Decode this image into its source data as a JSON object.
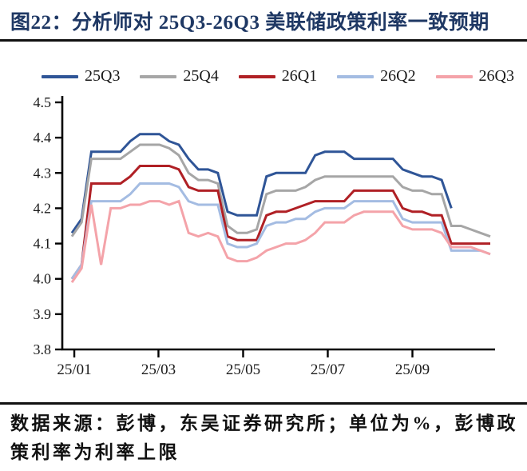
{
  "title": "图22：分析师对 25Q3-26Q3 美联储政策利率一致预期",
  "footer": "数据来源：彭博，东吴证券研究所；单位为%，彭博政策利率为利率上限",
  "colors": {
    "title_navy": "#1F3864",
    "rule_black": "#111111",
    "axis_black": "#000000"
  },
  "chart_data": {
    "type": "line",
    "title": "",
    "xlabel": "",
    "ylabel": "",
    "unit": "%",
    "grid": false,
    "legend_position": "top",
    "ylim": [
      3.8,
      4.5
    ],
    "y_ticks": [
      4.5,
      4.4,
      4.3,
      4.2,
      4.1,
      4.0,
      3.9,
      3.8
    ],
    "x_tick_labels": [
      "25/01",
      "25/03",
      "25/05",
      "25/07",
      "25/09"
    ],
    "x_ticks_at_point": [
      0.25,
      8.9,
      17.6,
      26.3,
      35.0
    ],
    "n_points": 44,
    "series": [
      {
        "name": "25Q3",
        "color": "#2F5597",
        "values": [
          4.13,
          4.17,
          4.36,
          4.36,
          4.36,
          4.36,
          4.39,
          4.41,
          4.41,
          4.41,
          4.39,
          4.38,
          4.34,
          4.31,
          4.31,
          4.3,
          4.19,
          4.18,
          4.18,
          4.18,
          4.29,
          4.3,
          4.3,
          4.3,
          4.3,
          4.35,
          4.36,
          4.36,
          4.36,
          4.34,
          4.34,
          4.34,
          4.34,
          4.34,
          4.31,
          4.3,
          4.29,
          4.29,
          4.28,
          4.2,
          null,
          null,
          null,
          null
        ]
      },
      {
        "name": "25Q4",
        "color": "#A6A6A6",
        "values": [
          4.12,
          4.16,
          4.34,
          4.34,
          4.34,
          4.34,
          4.36,
          4.38,
          4.38,
          4.38,
          4.37,
          4.35,
          4.3,
          4.28,
          4.28,
          4.27,
          4.15,
          4.13,
          4.13,
          4.14,
          4.24,
          4.25,
          4.25,
          4.25,
          4.26,
          4.28,
          4.29,
          4.29,
          4.29,
          4.29,
          4.29,
          4.29,
          4.29,
          4.29,
          4.26,
          4.25,
          4.25,
          4.24,
          4.24,
          4.15,
          4.15,
          4.14,
          4.13,
          4.12
        ]
      },
      {
        "name": "26Q1",
        "color": "#B02025",
        "values": [
          4.0,
          4.04,
          4.27,
          4.27,
          4.27,
          4.27,
          4.29,
          4.32,
          4.32,
          4.32,
          4.32,
          4.31,
          4.26,
          4.25,
          4.25,
          4.25,
          4.12,
          4.11,
          4.11,
          4.11,
          4.18,
          4.19,
          4.19,
          4.2,
          4.21,
          4.22,
          4.22,
          4.22,
          4.22,
          4.25,
          4.25,
          4.25,
          4.25,
          4.25,
          4.2,
          4.19,
          4.19,
          4.18,
          4.18,
          4.1,
          4.1,
          4.1,
          4.1,
          4.1
        ]
      },
      {
        "name": "26Q2",
        "color": "#A4BCE2",
        "values": [
          4.0,
          4.04,
          4.22,
          4.22,
          4.22,
          4.22,
          4.24,
          4.27,
          4.27,
          4.27,
          4.27,
          4.26,
          4.22,
          4.21,
          4.21,
          4.21,
          4.1,
          4.09,
          4.09,
          4.1,
          4.15,
          4.16,
          4.16,
          4.17,
          4.17,
          4.19,
          4.2,
          4.2,
          4.2,
          4.22,
          4.22,
          4.22,
          4.22,
          4.22,
          4.17,
          4.16,
          4.16,
          4.16,
          4.16,
          4.08,
          4.08,
          4.08,
          4.08,
          4.07
        ]
      },
      {
        "name": "26Q3",
        "color": "#F4A3A9",
        "values": [
          3.99,
          4.03,
          4.21,
          4.04,
          4.2,
          4.2,
          4.21,
          4.21,
          4.22,
          4.22,
          4.21,
          4.22,
          4.13,
          4.12,
          4.13,
          4.12,
          4.06,
          4.05,
          4.05,
          4.06,
          4.08,
          4.09,
          4.1,
          4.1,
          4.11,
          4.13,
          4.16,
          4.16,
          4.16,
          4.18,
          4.19,
          4.19,
          4.19,
          4.19,
          4.15,
          4.14,
          4.14,
          4.14,
          4.13,
          4.09,
          4.09,
          4.09,
          4.08,
          4.07
        ]
      }
    ]
  }
}
